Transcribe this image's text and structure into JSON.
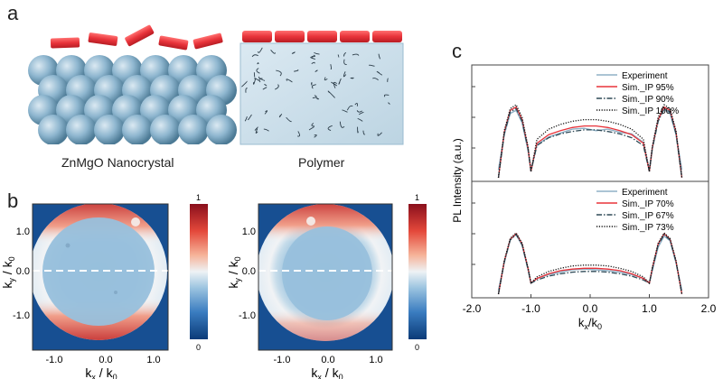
{
  "panel_a": {
    "letter": "a",
    "left_caption": "ZnMgO Nanocrystal",
    "right_caption": "Polymer",
    "colors": {
      "emitter": "#e8333a",
      "sphere": "#8eb6cf",
      "polymer_bg": "#d2e4ee",
      "chain": "#2d3e4a"
    }
  },
  "panel_b": {
    "letter": "b",
    "y_ticks": [
      "1.0",
      "0.0",
      "-1.0"
    ],
    "x_ticks": [
      "-1.0",
      "0.0",
      "1.0"
    ],
    "ylabel": "k",
    "ylabel_sub_1": "y",
    "ylabel_mid": " / k",
    "ylabel_sub_2": "0",
    "xlabel": "k",
    "xlabel_sub_1": "x",
    "xlabel_mid": " / k",
    "xlabel_sub_2": "0",
    "colorbar_max": "1",
    "colorbar_min": "0"
  },
  "panel_c": {
    "letter": "c",
    "x_ticks": [
      "-2.0",
      "-1.0",
      "0.0",
      "1.0",
      "2.0"
    ],
    "ylabel": "PL Intensity (a.u.)",
    "xlabel": "k",
    "xlabel_sub_1": "x",
    "xlabel_mid": "/k",
    "xlabel_sub_2": "0",
    "top_legend": [
      "Experiment",
      "Sim._IP 95%",
      "Sim._IP 90%",
      "Sim._IP 100%"
    ],
    "bottom_legend": [
      "Experiment",
      "Sim._IP 70%",
      "Sim._IP 67%",
      "Sim._IP 73%"
    ]
  },
  "chart_data": {
    "type": "line",
    "xlim": [
      -2.0,
      2.0
    ],
    "xlabel": "kx/k0",
    "ylabel": "PL Intensity (a.u.)",
    "grid": false,
    "legend": "top-right",
    "subplots": [
      {
        "position": "top",
        "series": [
          {
            "name": "Experiment",
            "color": "#8fb0c6",
            "style": "solid",
            "x": [
              -1.55,
              -1.45,
              -1.35,
              -1.25,
              -1.15,
              -1.05,
              -1.0,
              -0.9,
              -0.7,
              -0.5,
              -0.3,
              -0.1,
              0.1,
              0.3,
              0.5,
              0.7,
              0.9,
              1.0,
              1.05,
              1.15,
              1.25,
              1.35,
              1.45,
              1.55
            ],
            "y": [
              0.1,
              0.55,
              0.82,
              0.86,
              0.7,
              0.35,
              0.1,
              0.42,
              0.52,
              0.57,
              0.62,
              0.63,
              0.6,
              0.62,
              0.58,
              0.56,
              0.45,
              0.1,
              0.38,
              0.75,
              0.87,
              0.82,
              0.55,
              0.1
            ]
          },
          {
            "name": "Sim._IP 95%",
            "color": "#e8333a",
            "style": "solid",
            "x": [
              -1.55,
              -1.45,
              -1.35,
              -1.25,
              -1.15,
              -1.05,
              -1.0,
              -0.9,
              -0.7,
              -0.5,
              -0.3,
              -0.1,
              0.1,
              0.3,
              0.5,
              0.7,
              0.9,
              1.0,
              1.05,
              1.15,
              1.25,
              1.35,
              1.45,
              1.55
            ],
            "y": [
              0.0,
              0.58,
              0.86,
              0.9,
              0.74,
              0.38,
              0.08,
              0.44,
              0.55,
              0.6,
              0.64,
              0.66,
              0.66,
              0.64,
              0.6,
              0.55,
              0.44,
              0.08,
              0.38,
              0.74,
              0.9,
              0.86,
              0.58,
              0.0
            ]
          },
          {
            "name": "Sim._IP 90%",
            "color": "#2f4a57",
            "style": "dashdot",
            "x": [
              -1.55,
              -1.45,
              -1.35,
              -1.25,
              -1.15,
              -1.05,
              -1.0,
              -0.9,
              -0.7,
              -0.5,
              -0.3,
              -0.1,
              0.1,
              0.3,
              0.5,
              0.7,
              0.9,
              1.0,
              1.05,
              1.15,
              1.25,
              1.35,
              1.45,
              1.55
            ],
            "y": [
              0.0,
              0.56,
              0.84,
              0.88,
              0.72,
              0.37,
              0.08,
              0.41,
              0.51,
              0.56,
              0.59,
              0.61,
              0.61,
              0.59,
              0.56,
              0.51,
              0.41,
              0.08,
              0.37,
              0.72,
              0.88,
              0.84,
              0.56,
              0.0
            ]
          },
          {
            "name": "Sim._IP 100%",
            "color": "#111111",
            "style": "dotted",
            "x": [
              -1.55,
              -1.45,
              -1.35,
              -1.25,
              -1.15,
              -1.05,
              -1.0,
              -0.9,
              -0.7,
              -0.5,
              -0.3,
              -0.1,
              0.1,
              0.3,
              0.5,
              0.7,
              0.9,
              1.0,
              1.05,
              1.15,
              1.25,
              1.35,
              1.45,
              1.55
            ],
            "y": [
              0.0,
              0.6,
              0.88,
              0.93,
              0.77,
              0.4,
              0.08,
              0.49,
              0.62,
              0.68,
              0.72,
              0.74,
              0.74,
              0.72,
              0.68,
              0.62,
              0.49,
              0.08,
              0.4,
              0.77,
              0.93,
              0.88,
              0.6,
              0.0
            ]
          }
        ]
      },
      {
        "position": "bottom",
        "series": [
          {
            "name": "Experiment",
            "color": "#8fb0c6",
            "style": "solid",
            "x": [
              -1.55,
              -1.45,
              -1.35,
              -1.25,
              -1.15,
              -1.05,
              -1.0,
              -0.9,
              -0.7,
              -0.5,
              -0.3,
              -0.1,
              0.1,
              0.3,
              0.5,
              0.7,
              0.9,
              1.0,
              1.05,
              1.15,
              1.25,
              1.35,
              1.45,
              1.55
            ],
            "y": [
              0.05,
              0.4,
              0.7,
              0.76,
              0.62,
              0.32,
              0.14,
              0.2,
              0.25,
              0.28,
              0.31,
              0.32,
              0.31,
              0.3,
              0.28,
              0.25,
              0.2,
              0.14,
              0.3,
              0.6,
              0.74,
              0.68,
              0.4,
              0.05
            ]
          },
          {
            "name": "Sim._IP 70%",
            "color": "#e8333a",
            "style": "solid",
            "x": [
              -1.55,
              -1.45,
              -1.35,
              -1.25,
              -1.15,
              -1.05,
              -1.0,
              -0.9,
              -0.7,
              -0.5,
              -0.3,
              -0.1,
              0.1,
              0.3,
              0.5,
              0.7,
              0.9,
              1.0,
              1.05,
              1.15,
              1.25,
              1.35,
              1.45,
              1.55
            ],
            "y": [
              0.0,
              0.42,
              0.7,
              0.77,
              0.64,
              0.33,
              0.14,
              0.2,
              0.26,
              0.3,
              0.32,
              0.33,
              0.33,
              0.32,
              0.3,
              0.26,
              0.2,
              0.14,
              0.33,
              0.64,
              0.77,
              0.7,
              0.42,
              0.0
            ]
          },
          {
            "name": "Sim._IP 67%",
            "color": "#2f4a57",
            "style": "dashdot",
            "x": [
              -1.55,
              -1.45,
              -1.35,
              -1.25,
              -1.15,
              -1.05,
              -1.0,
              -0.9,
              -0.7,
              -0.5,
              -0.3,
              -0.1,
              0.1,
              0.3,
              0.5,
              0.7,
              0.9,
              1.0,
              1.05,
              1.15,
              1.25,
              1.35,
              1.45,
              1.55
            ],
            "y": [
              0.0,
              0.41,
              0.69,
              0.76,
              0.63,
              0.32,
              0.14,
              0.18,
              0.23,
              0.26,
              0.28,
              0.29,
              0.29,
              0.28,
              0.26,
              0.23,
              0.18,
              0.14,
              0.32,
              0.63,
              0.76,
              0.69,
              0.41,
              0.0
            ]
          },
          {
            "name": "Sim._IP 73%",
            "color": "#111111",
            "style": "dotted",
            "x": [
              -1.55,
              -1.45,
              -1.35,
              -1.25,
              -1.15,
              -1.05,
              -1.0,
              -0.9,
              -0.7,
              -0.5,
              -0.3,
              -0.1,
              0.1,
              0.3,
              0.5,
              0.7,
              0.9,
              1.0,
              1.05,
              1.15,
              1.25,
              1.35,
              1.45,
              1.55
            ],
            "y": [
              0.0,
              0.43,
              0.71,
              0.78,
              0.65,
              0.34,
              0.14,
              0.22,
              0.29,
              0.33,
              0.36,
              0.37,
              0.37,
              0.36,
              0.33,
              0.29,
              0.22,
              0.14,
              0.34,
              0.65,
              0.78,
              0.71,
              0.43,
              0.0
            ]
          }
        ]
      }
    ]
  }
}
